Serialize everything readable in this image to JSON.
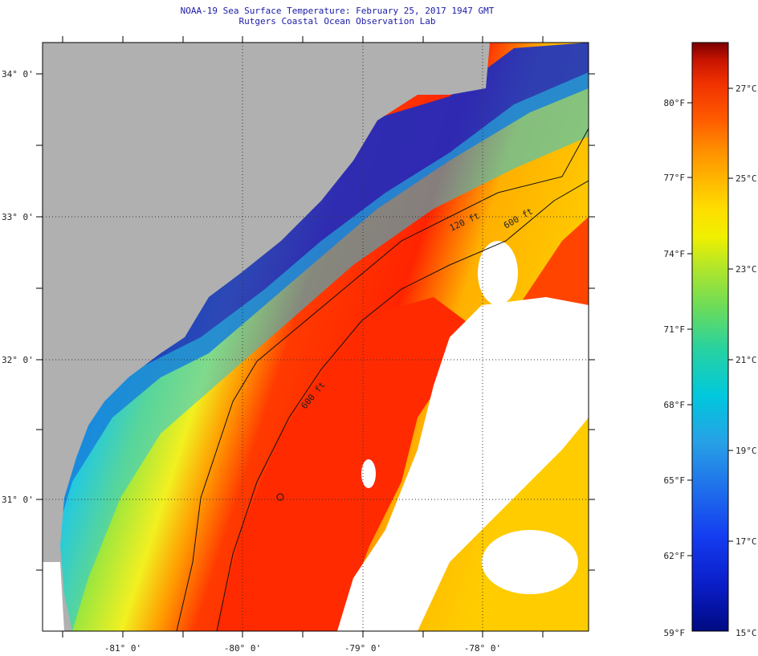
{
  "title": "NOAA-19 Sea Surface Temperature:  February 25, 2017 1947 GMT",
  "subtitle": "Rutgers Coastal Ocean Observation Lab",
  "map": {
    "lat_labels": [
      "34° 0'",
      "33° 0'",
      "32° 0'",
      "31° 0'"
    ],
    "lon_labels": [
      "-81° 0'",
      "-80° 0'",
      "-79° 0'",
      "-78° 0'"
    ],
    "contours": [
      "120 ft",
      "600 ft",
      "600 ft"
    ],
    "land_color": "#b0b0b0",
    "cloud_color": "#ffffff"
  },
  "colorbar": {
    "fahrenheit": [
      "80°F",
      "77°F",
      "74°F",
      "71°F",
      "68°F",
      "65°F",
      "62°F",
      "59°F"
    ],
    "celsius": [
      "27°C",
      "25°C",
      "23°C",
      "21°C",
      "19°C",
      "17°C",
      "15°C"
    ],
    "colors": [
      "#7a0000",
      "#c81400",
      "#f03200",
      "#ff5a00",
      "#ff8c00",
      "#ffb400",
      "#ffdc00",
      "#f0f000",
      "#b4e628",
      "#6cdc5a",
      "#28d2a0",
      "#00c8dc",
      "#28a0e6",
      "#1e6eeb",
      "#143cf0",
      "#0a1ec8",
      "#000a82"
    ]
  }
}
